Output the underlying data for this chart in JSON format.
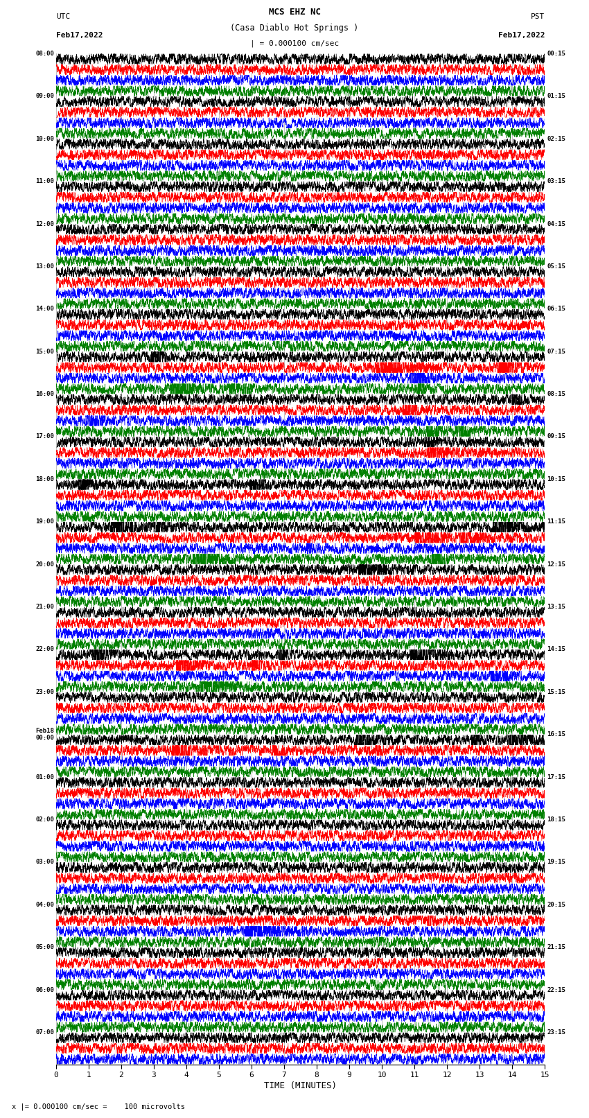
{
  "title_line1": "MCS EHZ NC",
  "title_line2": "(Casa Diablo Hot Springs )",
  "title_line3": "| = 0.000100 cm/sec",
  "left_header_line1": "UTC",
  "left_header_line2": "Feb17,2022",
  "right_header_line1": "PST",
  "right_header_line2": "Feb17,2022",
  "xlabel": "TIME (MINUTES)",
  "footer": "x |= 0.000100 cm/sec =    100 microvolts",
  "xlim": [
    0,
    15
  ],
  "xticks": [
    0,
    1,
    2,
    3,
    4,
    5,
    6,
    7,
    8,
    9,
    10,
    11,
    12,
    13,
    14,
    15
  ],
  "utc_labels": [
    "08:00",
    "",
    "",
    "",
    "09:00",
    "",
    "",
    "",
    "10:00",
    "",
    "",
    "",
    "11:00",
    "",
    "",
    "",
    "12:00",
    "",
    "",
    "",
    "13:00",
    "",
    "",
    "",
    "14:00",
    "",
    "",
    "",
    "15:00",
    "",
    "",
    "",
    "16:00",
    "",
    "",
    "",
    "17:00",
    "",
    "",
    "",
    "18:00",
    "",
    "",
    "",
    "19:00",
    "",
    "",
    "",
    "20:00",
    "",
    "",
    "",
    "21:00",
    "",
    "",
    "",
    "22:00",
    "",
    "",
    "",
    "23:00",
    "",
    "",
    "",
    "Feb18\n00:00",
    "",
    "",
    "",
    "01:00",
    "",
    "",
    "",
    "02:00",
    "",
    "",
    "",
    "03:00",
    "",
    "",
    "",
    "04:00",
    "",
    "",
    "",
    "05:00",
    "",
    "",
    "",
    "06:00",
    "",
    "",
    "",
    "07:00",
    "",
    ""
  ],
  "pst_labels": [
    "00:15",
    "",
    "",
    "",
    "01:15",
    "",
    "",
    "",
    "02:15",
    "",
    "",
    "",
    "03:15",
    "",
    "",
    "",
    "04:15",
    "",
    "",
    "",
    "05:15",
    "",
    "",
    "",
    "06:15",
    "",
    "",
    "",
    "07:15",
    "",
    "",
    "",
    "08:15",
    "",
    "",
    "",
    "09:15",
    "",
    "",
    "",
    "10:15",
    "",
    "",
    "",
    "11:15",
    "",
    "",
    "",
    "12:15",
    "",
    "",
    "",
    "13:15",
    "",
    "",
    "",
    "14:15",
    "",
    "",
    "",
    "15:15",
    "",
    "",
    "",
    "16:15",
    "",
    "",
    "",
    "17:15",
    "",
    "",
    "",
    "18:15",
    "",
    "",
    "",
    "19:15",
    "",
    "",
    "",
    "20:15",
    "",
    "",
    "",
    "21:15",
    "",
    "",
    "",
    "22:15",
    "",
    "",
    "",
    "23:15",
    "",
    ""
  ],
  "trace_colors": [
    "black",
    "red",
    "blue",
    "green"
  ],
  "n_rows": 95,
  "grid_color": "#888888",
  "background_color": "white",
  "seed": 42,
  "dpi": 100,
  "figwidth": 8.5,
  "figheight": 16.13,
  "event_rows": {
    "28": 4.0,
    "29": 3.5,
    "30": 3.5,
    "31": 3.0,
    "32": 4.0,
    "33": 3.5,
    "34": 3.0,
    "35": 3.0,
    "36": 2.5,
    "37": 2.5,
    "40": 2.5,
    "44": 3.5,
    "45": 3.0,
    "46": 2.5,
    "47": 2.5,
    "48": 2.5,
    "56": 3.5,
    "57": 3.0,
    "58": 3.0,
    "59": 2.5,
    "64": 3.0,
    "65": 2.5,
    "81": 4.0,
    "82": 3.5
  }
}
